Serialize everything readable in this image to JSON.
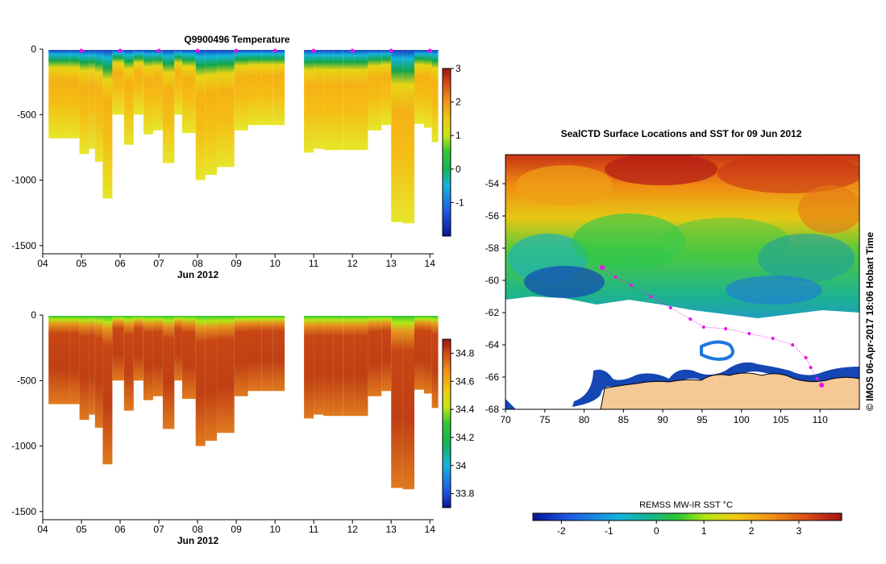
{
  "chart_data": [
    {
      "id": "temperature_section",
      "type": "heatmap",
      "title": "Q9900496  Temperature",
      "xlabel": "Jun 2012",
      "ylabel": "",
      "x_ticks": [
        "04",
        "05",
        "06",
        "07",
        "08",
        "09",
        "10",
        "11",
        "12",
        "13",
        "14"
      ],
      "y_ticks": [
        "0",
        "-500",
        "-1000",
        "-1500"
      ],
      "xlim": [
        4,
        14.1
      ],
      "ylim": [
        -1550,
        0
      ],
      "colorbar": {
        "min": -2,
        "max": 3,
        "ticks": [
          "-1",
          "0",
          "1",
          "2",
          "3"
        ]
      },
      "profiles": [
        {
          "day": 4.4,
          "max_depth": 680
        },
        {
          "day": 4.7,
          "max_depth": 680
        },
        {
          "day": 4.95,
          "max_depth": 800
        },
        {
          "day": 5.2,
          "max_depth": 760
        },
        {
          "day": 5.35,
          "max_depth": 860
        },
        {
          "day": 5.55,
          "max_depth": 1140
        },
        {
          "day": 5.8,
          "max_depth": 500
        },
        {
          "day": 6.1,
          "max_depth": 730
        },
        {
          "day": 6.35,
          "max_depth": 500
        },
        {
          "day": 6.6,
          "max_depth": 650
        },
        {
          "day": 6.85,
          "max_depth": 620
        },
        {
          "day": 7.1,
          "max_depth": 870
        },
        {
          "day": 7.4,
          "max_depth": 500
        },
        {
          "day": 7.6,
          "max_depth": 640
        },
        {
          "day": 7.95,
          "max_depth": 1000
        },
        {
          "day": 8.2,
          "max_depth": 960
        },
        {
          "day": 8.5,
          "max_depth": 900
        },
        {
          "day": 8.95,
          "max_depth": 620
        },
        {
          "day": 9.3,
          "max_depth": 580
        },
        {
          "day": 9.65,
          "max_depth": 580
        },
        {
          "day": 9.95,
          "max_depth": 580
        },
        {
          "day": 10.75,
          "max_depth": 790
        },
        {
          "day": 11.0,
          "max_depth": 760
        },
        {
          "day": 11.25,
          "max_depth": 770
        },
        {
          "day": 11.5,
          "max_depth": 770
        },
        {
          "day": 11.75,
          "max_depth": 770
        },
        {
          "day": 12.05,
          "max_depth": 770
        },
        {
          "day": 12.4,
          "max_depth": 620
        },
        {
          "day": 12.75,
          "max_depth": 580
        },
        {
          "day": 13.0,
          "max_depth": 1320
        },
        {
          "day": 13.3,
          "max_depth": 1330
        },
        {
          "day": 13.6,
          "max_depth": 570
        },
        {
          "day": 13.85,
          "max_depth": 600
        },
        {
          "day": 14.05,
          "max_depth": 710
        }
      ],
      "surface_markers_days": [
        5.0,
        6.0,
        7.0,
        8.0,
        9.0,
        10.0,
        11.0,
        12.0,
        13.0,
        14.0
      ]
    },
    {
      "id": "salinity_section",
      "type": "heatmap",
      "title": "",
      "xlabel": "Jun 2012",
      "ylabel": "",
      "x_ticks": [
        "04",
        "05",
        "06",
        "07",
        "08",
        "09",
        "10",
        "11",
        "12",
        "13",
        "14"
      ],
      "y_ticks": [
        "0",
        "-500",
        "-1000",
        "-1500"
      ],
      "xlim": [
        4,
        14.1
      ],
      "ylim": [
        -1550,
        0
      ],
      "colorbar": {
        "min": 33.7,
        "max": 34.9,
        "ticks": [
          "33.8",
          "34",
          "34.2",
          "34.4",
          "34.6",
          "34.8"
        ]
      },
      "profiles": "same as temperature_section"
    },
    {
      "id": "sst_map",
      "type": "heatmap",
      "title": "SealCTD Surface Locations and SST for 09 Jun 2012",
      "xlabel": "",
      "ylabel": "",
      "x_ticks": [
        "70",
        "75",
        "80",
        "85",
        "90",
        "95",
        "100",
        "105",
        "110"
      ],
      "y_ticks": [
        "-54",
        "-56",
        "-58",
        "-60",
        "-62",
        "-64",
        "-66",
        "-68"
      ],
      "xlim": [
        70,
        115
      ],
      "ylim": [
        -68,
        -52.2
      ],
      "colorbar": {
        "label": "REMSS MW-IR SST °C",
        "min": -2.6,
        "max": 3.9,
        "ticks": [
          "-2",
          "-1",
          "0",
          "1",
          "2",
          "3"
        ]
      },
      "track_points": [
        {
          "lon": 82.3,
          "lat": -59.2
        },
        {
          "lon": 84.0,
          "lat": -59.8
        },
        {
          "lon": 86.0,
          "lat": -60.3
        },
        {
          "lon": 88.5,
          "lat": -61.0
        },
        {
          "lon": 91.0,
          "lat": -61.7
        },
        {
          "lon": 93.5,
          "lat": -62.4
        },
        {
          "lon": 95.2,
          "lat": -62.9
        },
        {
          "lon": 98.0,
          "lat": -63.0
        },
        {
          "lon": 101.0,
          "lat": -63.3
        },
        {
          "lon": 104.0,
          "lat": -63.6
        },
        {
          "lon": 106.5,
          "lat": -64.0
        },
        {
          "lon": 108.2,
          "lat": -64.8
        },
        {
          "lon": 108.8,
          "lat": -65.4
        },
        {
          "lon": 109.6,
          "lat": -66.1
        },
        {
          "lon": 110.2,
          "lat": -66.5
        }
      ]
    }
  ],
  "side_label": "© IMOS 06-Apr-2017 18:06 Hobart Time"
}
